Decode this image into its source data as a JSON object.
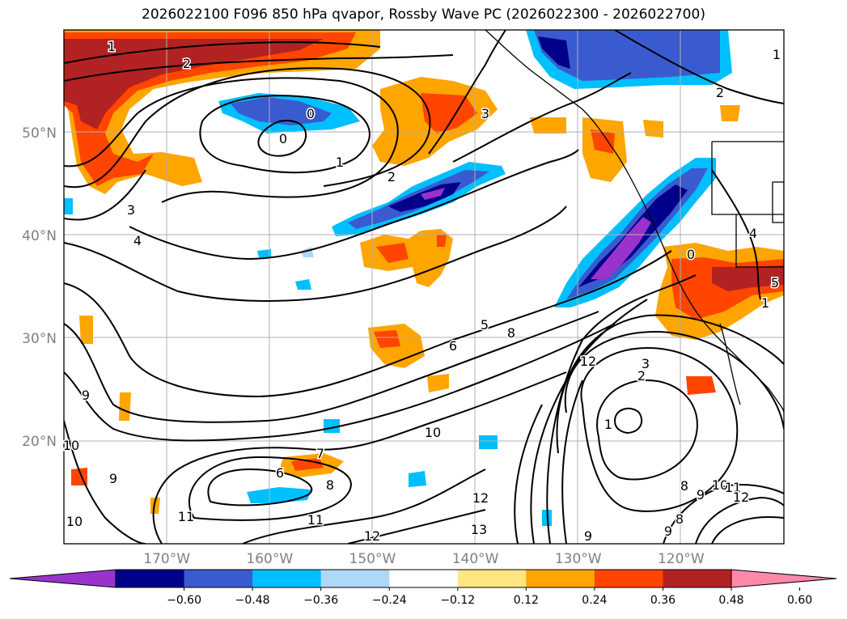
{
  "title": "2026022100 F096 850 hPa qvapor, Rossby Wave PC (2026022300 - 2026022700)",
  "map": {
    "lat_labels": [
      "50°N",
      "40°N",
      "30°N",
      "20°N"
    ],
    "lon_labels": [
      "170°W",
      "160°W",
      "150°W",
      "140°W",
      "130°W",
      "120°W"
    ],
    "lat_values": [
      50,
      40,
      30,
      20
    ],
    "lon_values": [
      -170,
      -160,
      -150,
      -140,
      -130,
      -120
    ],
    "lon_range": [
      -180,
      -110
    ],
    "lat_range": [
      10,
      60
    ],
    "gridlines": true,
    "coastlines": true
  },
  "colorbar": {
    "ticks": [
      "−0.60",
      "−0.48",
      "−0.36",
      "−0.24",
      "−0.12",
      "0.12",
      "0.24",
      "0.36",
      "0.48",
      "0.60"
    ],
    "colors": [
      "#9933cc",
      "#00008b",
      "#3a5bcf",
      "#00bfff",
      "#add8f7",
      "#ffffff",
      "#ffe680",
      "#ffa500",
      "#ff4500",
      "#b22222",
      "#ff88aa"
    ],
    "extend": "both"
  },
  "contour_labels": [
    {
      "text": "1"
    },
    {
      "text": "2"
    },
    {
      "text": "0"
    },
    {
      "text": "0"
    },
    {
      "text": "1"
    },
    {
      "text": "3"
    },
    {
      "text": "2"
    },
    {
      "text": "3"
    },
    {
      "text": "4"
    },
    {
      "text": "2"
    },
    {
      "text": "1"
    },
    {
      "text": "5"
    },
    {
      "text": "6"
    },
    {
      "text": "8"
    },
    {
      "text": "12"
    },
    {
      "text": "3"
    },
    {
      "text": "2"
    },
    {
      "text": "1"
    },
    {
      "text": "10"
    },
    {
      "text": "9"
    },
    {
      "text": "10"
    },
    {
      "text": "9"
    },
    {
      "text": "7"
    },
    {
      "text": "6"
    },
    {
      "text": "8"
    },
    {
      "text": "11"
    },
    {
      "text": "11"
    },
    {
      "text": "10"
    },
    {
      "text": "12"
    },
    {
      "text": "12"
    },
    {
      "text": "13"
    },
    {
      "text": "9"
    },
    {
      "text": "8"
    },
    {
      "text": "8"
    },
    {
      "text": "9"
    },
    {
      "text": "10"
    },
    {
      "text": "11"
    },
    {
      "text": "12"
    },
    {
      "text": "9"
    },
    {
      "text": "4"
    },
    {
      "text": "5"
    },
    {
      "text": "0"
    },
    {
      "text": "1"
    }
  ]
}
